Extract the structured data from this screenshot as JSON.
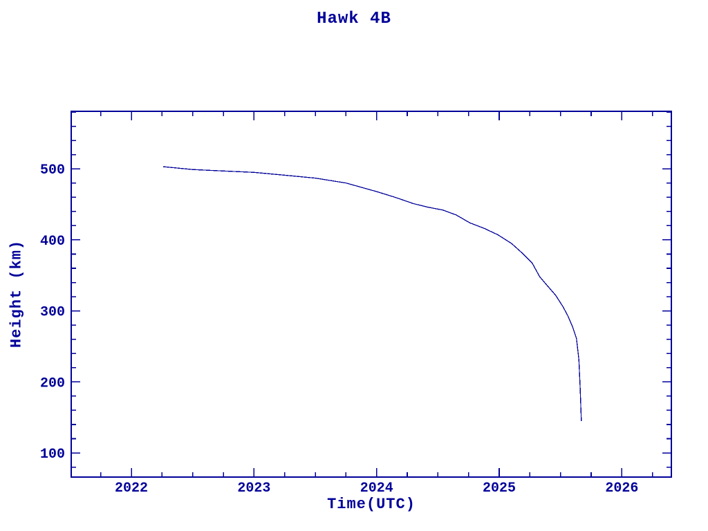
{
  "window": {
    "background": "#ffffff"
  },
  "colors": {
    "accent": "#000099",
    "background": "#ffffff"
  },
  "chart_data": {
    "type": "line",
    "title": "Hawk 4B",
    "xlabel": "Time(UTC)",
    "ylabel": "Height (km)",
    "xlim": [
      2021.509,
      2026.404
    ],
    "ylim": [
      66,
      581
    ],
    "x_ticks": [
      2022,
      2023,
      2024,
      2025,
      2026
    ],
    "y_ticks": [
      100,
      200,
      300,
      400,
      500
    ],
    "x_minor_step": 0.25,
    "y_minor_step": 20,
    "grid": false,
    "legend": null,
    "line_color": "#000099",
    "series": [
      {
        "name": "Hawk 4B height",
        "points": [
          [
            2022.26,
            503
          ],
          [
            2022.5,
            499
          ],
          [
            2022.75,
            497
          ],
          [
            2023.0,
            495
          ],
          [
            2023.25,
            491
          ],
          [
            2023.5,
            487
          ],
          [
            2023.75,
            480
          ],
          [
            2024.0,
            468
          ],
          [
            2024.15,
            460
          ],
          [
            2024.3,
            451
          ],
          [
            2024.42,
            446
          ],
          [
            2024.54,
            442
          ],
          [
            2024.65,
            435
          ],
          [
            2024.76,
            424
          ],
          [
            2024.88,
            416
          ],
          [
            2024.99,
            407
          ],
          [
            2025.1,
            395
          ],
          [
            2025.19,
            381
          ],
          [
            2025.27,
            367
          ],
          [
            2025.33,
            348
          ],
          [
            2025.39,
            336
          ],
          [
            2025.46,
            322
          ],
          [
            2025.52,
            306
          ],
          [
            2025.56,
            293
          ],
          [
            2025.6,
            277
          ],
          [
            2025.63,
            261
          ],
          [
            2025.65,
            231
          ],
          [
            2025.66,
            192
          ],
          [
            2025.67,
            145
          ]
        ]
      }
    ]
  }
}
